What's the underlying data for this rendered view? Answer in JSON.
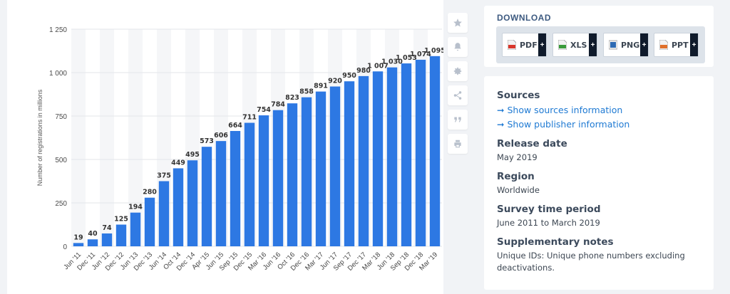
{
  "chart_data": {
    "type": "bar",
    "ylabel": "Number of registrations in millions",
    "ylim": [
      0,
      1250
    ],
    "yticks": [
      0,
      250,
      500,
      750,
      1000,
      1250
    ],
    "ytick_labels": [
      "0",
      "250",
      "500",
      "750",
      "1 000",
      "1 250"
    ],
    "categories": [
      "Jun '11",
      "Dec '11",
      "Jun '12",
      "Dec '12",
      "Jun '13",
      "Dec '13",
      "Jun '14",
      "Oct '14",
      "Dec '14",
      "Apr '15",
      "Jun '15",
      "Sep '15",
      "Dec '15",
      "Mar '16",
      "Jun '16",
      "Oct '16",
      "Dec '16",
      "Mar '17",
      "Jun '17",
      "Sep '17",
      "Dec '17",
      "Mar '18",
      "Jun '18",
      "Sep '18",
      "Dec '18",
      "Mar '19"
    ],
    "values": [
      19,
      40,
      74,
      125,
      194,
      280,
      375,
      449,
      495,
      573,
      606,
      664,
      711,
      754,
      784,
      823,
      858,
      891,
      920,
      950,
      980,
      1007,
      1030,
      1053,
      1074,
      1095
    ],
    "value_labels": [
      "19",
      "40",
      "74",
      "125",
      "194",
      "280",
      "375",
      "449",
      "495",
      "573",
      "606",
      "664",
      "711",
      "754",
      "784",
      "823",
      "858",
      "891",
      "920",
      "950",
      "980",
      "1 007",
      "1 030",
      "1 053",
      "1 074",
      "1 095"
    ],
    "bar_color": "#2d78e3",
    "grid": true,
    "alternating_background": true
  },
  "toolbar": {
    "icons": [
      "star-icon",
      "bell-icon",
      "gear-icon",
      "share-icon",
      "quote-icon",
      "print-icon"
    ]
  },
  "download": {
    "title": "DOWNLOAD",
    "buttons": [
      {
        "label": "PDF",
        "color": "#d9372b",
        "plus": "+"
      },
      {
        "label": "XLS",
        "color": "#3a9b3a",
        "plus": "+"
      },
      {
        "label": "PNG",
        "color": "#2f6bb3",
        "plus": "+"
      },
      {
        "label": "PPT",
        "color": "#e0702a",
        "plus": "+"
      }
    ]
  },
  "info": {
    "sources_heading": "Sources",
    "link_sources": "Show sources information",
    "link_publisher": "Show publisher information",
    "release_heading": "Release date",
    "release_value": "May 2019",
    "region_heading": "Region",
    "region_value": "Worldwide",
    "survey_heading": "Survey time period",
    "survey_value": "June 2011 to March 2019",
    "notes_heading": "Supplementary notes",
    "notes_value": "Unique IDs: Unique phone numbers excluding deactivations."
  }
}
